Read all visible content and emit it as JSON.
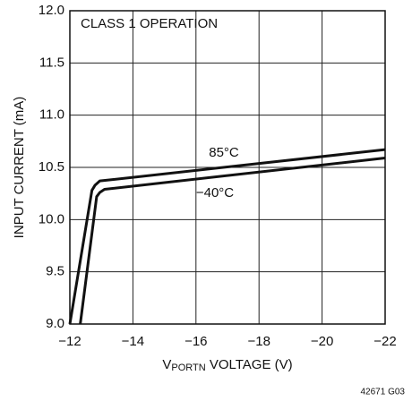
{
  "chart_data": {
    "type": "line",
    "annotation": "CLASS 1 OPERATION",
    "x_label": {
      "main": "V",
      "sub": "PORTN",
      "rest": " VOLTAGE (V)"
    },
    "y_label": "INPUT CURRENT (mA)",
    "footnote": "42671 G03",
    "xlim": [
      -12,
      -22
    ],
    "ylim": [
      9,
      12
    ],
    "xticks": [
      {
        "value": -12,
        "label": "−12"
      },
      {
        "value": -14,
        "label": "−14"
      },
      {
        "value": -16,
        "label": "−16"
      },
      {
        "value": -18,
        "label": "−18"
      },
      {
        "value": -20,
        "label": "−20"
      },
      {
        "value": -22,
        "label": "−22"
      }
    ],
    "yticks": [
      {
        "value": 9,
        "label": "9.0"
      },
      9.5,
      {
        "value": 10,
        "label": "10.0"
      },
      10.5,
      {
        "value": 11,
        "label": "11.0"
      },
      11.5,
      {
        "value": 12,
        "label": "12.0"
      }
    ],
    "grid": true,
    "series": [
      {
        "name": "85°C",
        "color": "#111111",
        "x": [
          -12.0,
          -12.7,
          -12.8,
          -12.95,
          -22
        ],
        "values": [
          9.0,
          10.28,
          10.33,
          10.37,
          10.67
        ]
      },
      {
        "name": "−40°C",
        "color": "#111111",
        "x": [
          -12.33,
          -12.85,
          -12.95,
          -13.1,
          -22
        ],
        "values": [
          9.0,
          10.22,
          10.26,
          10.29,
          10.59
        ]
      }
    ]
  }
}
